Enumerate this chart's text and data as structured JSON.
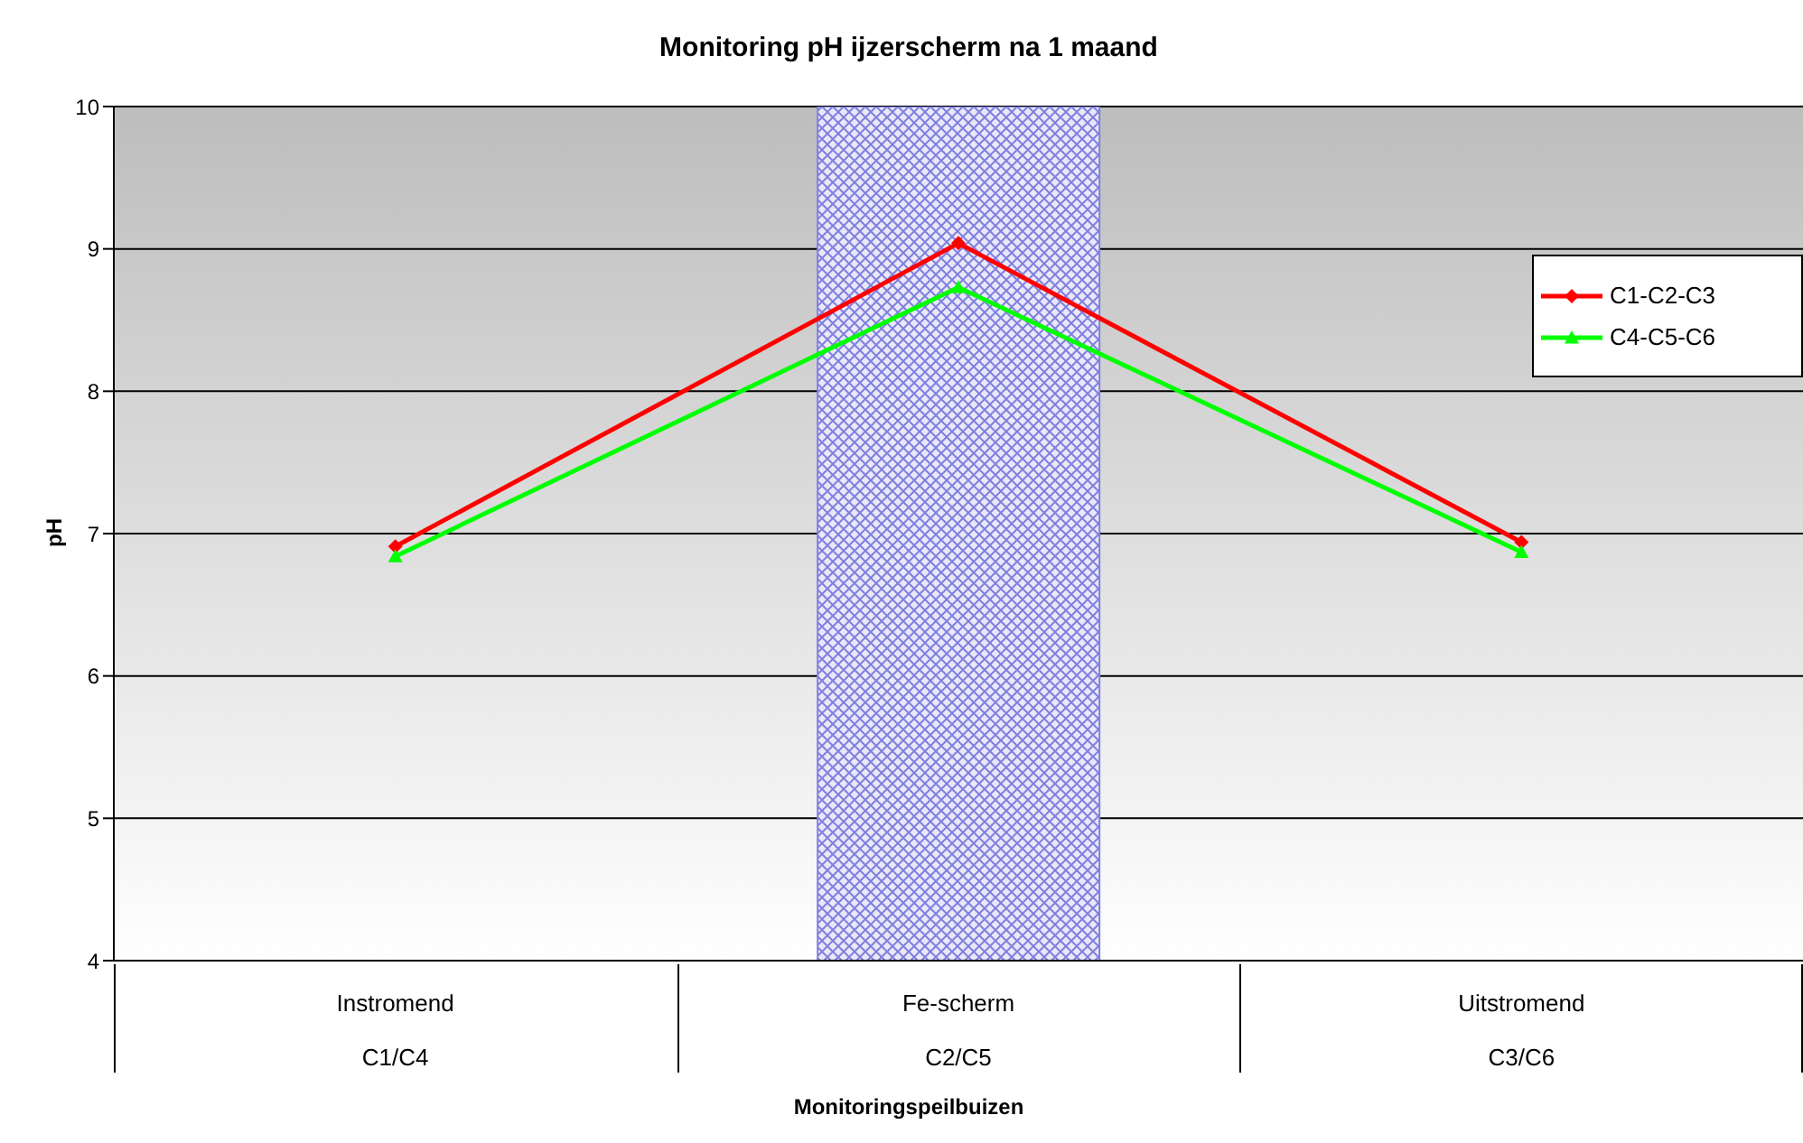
{
  "chart_data": {
    "type": "line",
    "title": "Monitoring pH ijzerscherm na 1 maand",
    "xlabel": "Monitoringspeilbuizen",
    "ylabel": "pH",
    "categories": [
      "Instromend\nC1/C4",
      "Fe-scherm\nC2/C5",
      "Uitstromend\nC3/C6"
    ],
    "series": [
      {
        "type": "bar",
        "color": "#8080e0",
        "values": [
          null,
          10,
          null
        ]
      },
      {
        "name": "C1-C2-C3",
        "color": "#ff0000",
        "marker": "diamond",
        "values": [
          6.91,
          9.04,
          6.94
        ]
      },
      {
        "name": "C4-C5-C6",
        "color": "#00ff00",
        "marker": "triangle",
        "values": [
          6.84,
          8.73,
          6.87
        ]
      }
    ],
    "ylim": [
      4,
      10
    ],
    "yticks": [
      4,
      5,
      6,
      7,
      8,
      9,
      10
    ],
    "grid": "y",
    "legend": "top right"
  }
}
